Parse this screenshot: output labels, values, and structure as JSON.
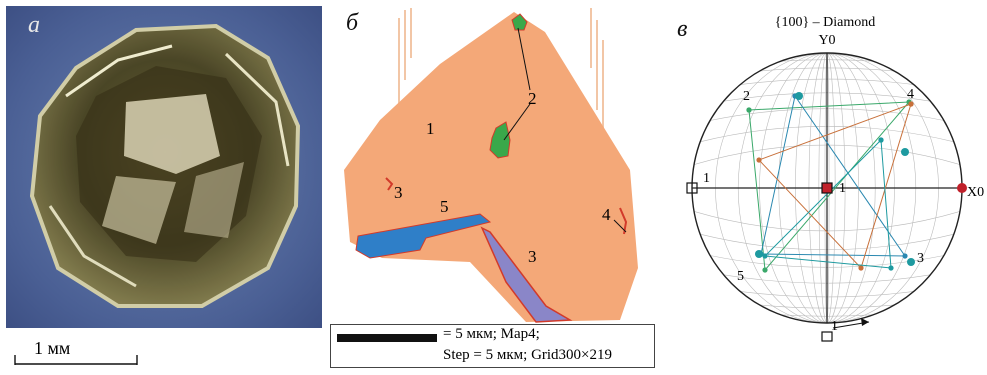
{
  "panel_a": {
    "label": "а",
    "scale_label": "1 мм"
  },
  "panel_b": {
    "label": "б",
    "regions": [
      "1",
      "2",
      "3",
      "4",
      "5",
      "3"
    ],
    "scale_line1": "= 5 мкм; Map4;",
    "scale_line2": "Step = 5 мкм; Grid300×219",
    "colors": {
      "matrix": "#f4a878",
      "green": "#3aa84a",
      "blue": "#2f7fc8",
      "purple": "#8a86c8",
      "red": "#d23a2a"
    }
  },
  "panel_c": {
    "label": "в",
    "title": "{100} – Diamond",
    "y_axis": "Y0",
    "x_axis": "X0",
    "numbers": [
      "1",
      "1",
      "1",
      "2",
      "3",
      "4",
      "5"
    ],
    "colors": {
      "green": "#3aa86a",
      "blue": "#2a88b0",
      "orange": "#c8703a",
      "teal": "#1e9aa0",
      "marker": "#c0202a"
    }
  }
}
